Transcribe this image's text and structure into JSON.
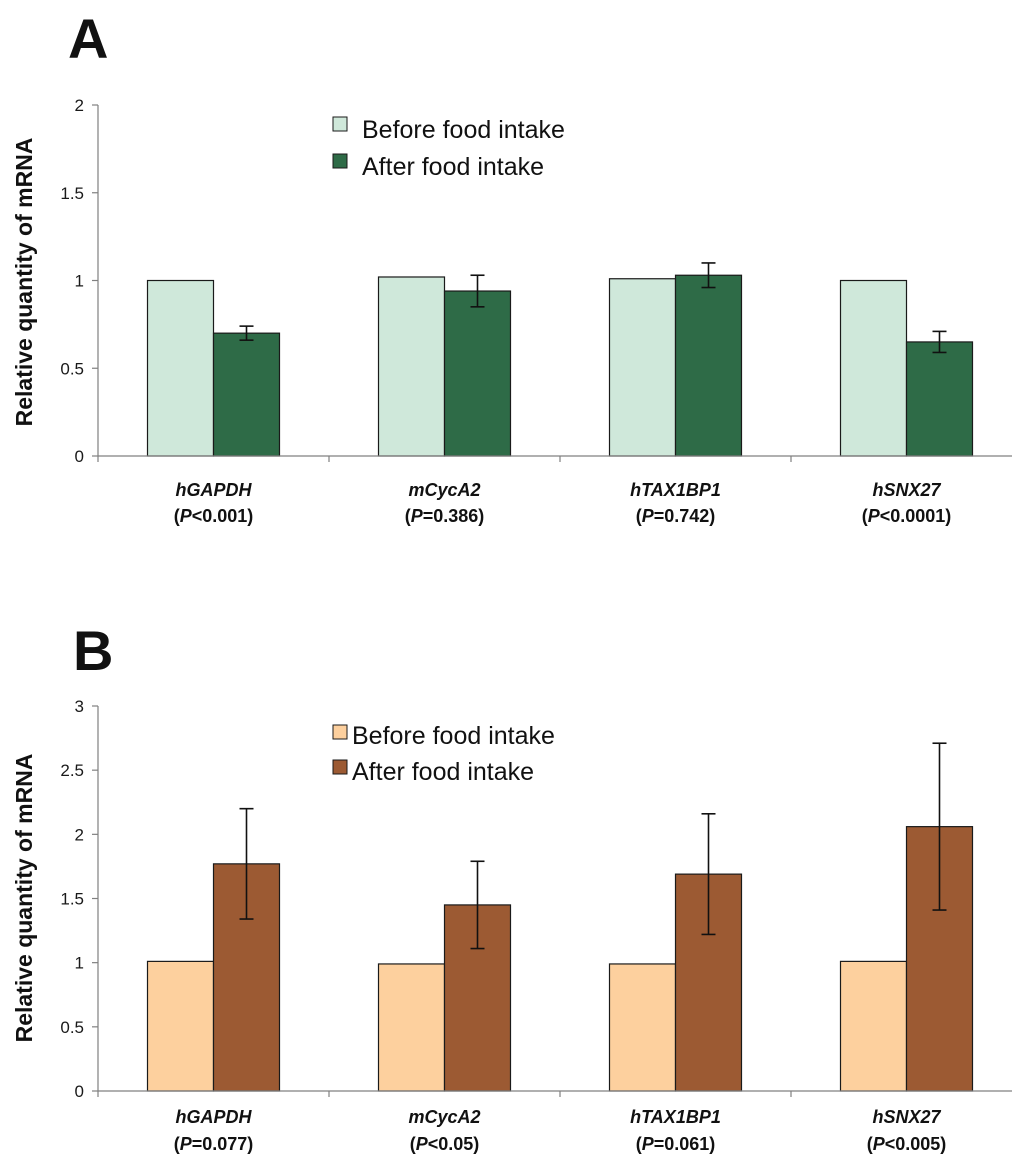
{
  "chart_data": [
    {
      "panel": "A",
      "type": "bar",
      "ylabel": "Relative quantity of mRNA",
      "ylim": [
        0,
        2
      ],
      "yticks": [
        "0",
        "0.5",
        "1",
        "1.5",
        "2"
      ],
      "ytick_values": [
        0,
        0.5,
        1,
        1.5,
        2
      ],
      "legend_position": "top-center",
      "categories": [
        {
          "name": "hGAPDH",
          "p_prefix": "(",
          "p_italic": "P",
          "p_rest": "<0.001)"
        },
        {
          "name": "mCycA2",
          "p_prefix": "(",
          "p_italic": "P",
          "p_rest": "=0.386)"
        },
        {
          "name": "hTAX1BP1",
          "p_prefix": "(",
          "p_italic": "P",
          "p_rest": "=0.742)"
        },
        {
          "name": "hSNX27",
          "p_prefix": "(",
          "p_italic": "P",
          "p_rest": "<0.0001)"
        }
      ],
      "series": [
        {
          "name": "Before food intake",
          "color": "#cfe8da",
          "values": [
            1.0,
            1.02,
            1.01,
            1.0
          ],
          "errors": [
            0,
            0,
            0,
            0
          ]
        },
        {
          "name": "After food intake",
          "color": "#2e6b47",
          "values": [
            0.7,
            0.94,
            1.03,
            0.65
          ],
          "errors": [
            0.04,
            0.09,
            0.07,
            0.06
          ]
        }
      ]
    },
    {
      "panel": "B",
      "type": "bar",
      "ylabel": "Relative quantity of mRNA",
      "ylim": [
        0,
        3
      ],
      "yticks": [
        "0",
        "0.5",
        "1",
        "1.5",
        "2",
        "2.5",
        "3"
      ],
      "ytick_values": [
        0,
        0.5,
        1,
        1.5,
        2,
        2.5,
        3
      ],
      "legend_position": "top-center",
      "categories": [
        {
          "name": "hGAPDH",
          "p_prefix": "(",
          "p_italic": "P",
          "p_rest": "=0.077)"
        },
        {
          "name": "mCycA2",
          "p_prefix": "(",
          "p_italic": "P",
          "p_rest": "<0.05)"
        },
        {
          "name": "hTAX1BP1",
          "p_prefix": "(",
          "p_italic": "P",
          "p_rest": "=0.061)"
        },
        {
          "name": "hSNX27",
          "p_prefix": "(",
          "p_italic": "P",
          "p_rest": "<0.005)"
        }
      ],
      "series": [
        {
          "name": "Before food intake",
          "color": "#fdd09e",
          "values": [
            1.01,
            0.99,
            0.99,
            1.01
          ],
          "errors": [
            0,
            0,
            0,
            0
          ]
        },
        {
          "name": "After food intake",
          "color": "#9c5a33",
          "values": [
            1.77,
            1.45,
            1.69,
            2.06
          ],
          "errors": [
            0.43,
            0.34,
            0.47,
            0.65
          ]
        }
      ]
    }
  ]
}
